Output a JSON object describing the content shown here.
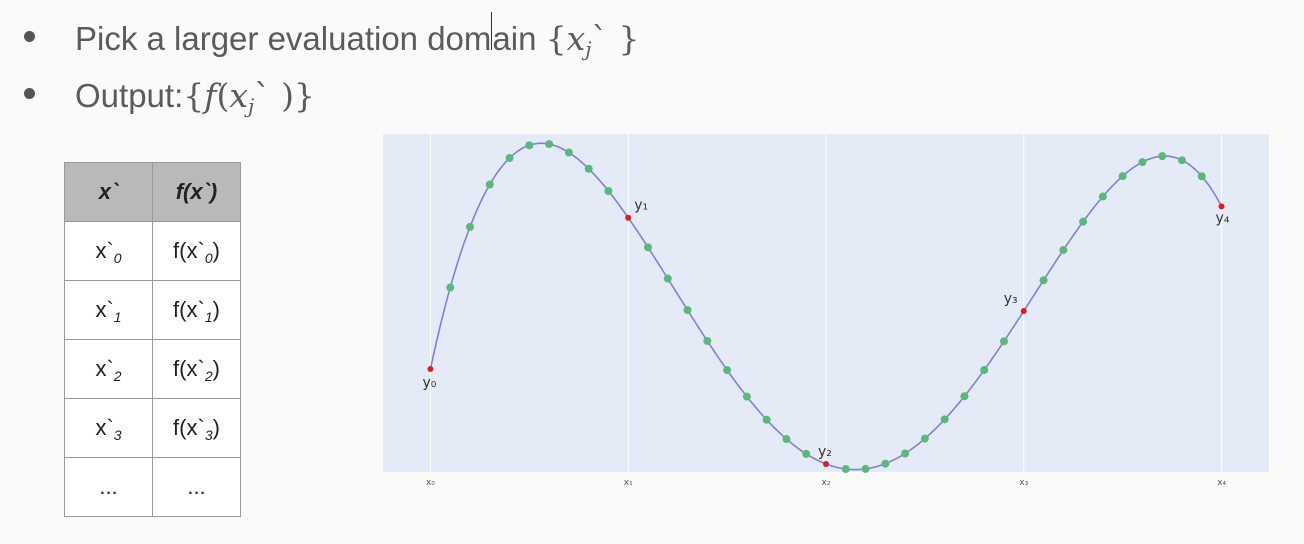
{
  "bullets": [
    {
      "text": "Pick a larger evaluation dom",
      "text_after": "ain",
      "math_open": "{",
      "math_var": "x",
      "math_sub": "j",
      "math_prime": "`",
      "math_close": "}"
    },
    {
      "text": "Output: ",
      "math_open": "{",
      "math_func": "f",
      "math_paren_open": "(",
      "math_var": "x",
      "math_sub": "j",
      "math_prime": "`",
      "math_paren_close": ")",
      "math_close": "}"
    }
  ],
  "table": {
    "headers": [
      "x`",
      "f(x`)"
    ],
    "rows": [
      {
        "x": "x`",
        "x_sub": "0",
        "fx": "f(x`",
        "fx_sub": "0",
        "fx_close": ")"
      },
      {
        "x": "x`",
        "x_sub": "1",
        "fx": "f(x`",
        "fx_sub": "1",
        "fx_close": ")"
      },
      {
        "x": "x`",
        "x_sub": "2",
        "fx": "f(x`",
        "fx_sub": "2",
        "fx_close": ")"
      },
      {
        "x": "x`",
        "x_sub": "3",
        "fx": "f(x`",
        "fx_sub": "3",
        "fx_close": ")"
      },
      {
        "x": "...",
        "x_sub": "",
        "fx": "...",
        "fx_sub": "",
        "fx_close": ""
      }
    ]
  },
  "chart_data": {
    "type": "line",
    "x_tick_labels": [
      "x₀",
      "x₁",
      "x₂",
      "x₃",
      "x₄"
    ],
    "point_labels": [
      "y₀",
      "y₁",
      "y₂",
      "y₃",
      "y₄"
    ],
    "x": [
      0,
      1,
      2,
      3,
      4
    ],
    "y": [
      -0.41,
      0.53,
      -1.0,
      -0.05,
      0.6
    ],
    "xlim": [
      -0.24,
      4.24
    ],
    "ylim": [
      -1.05,
      1.05
    ],
    "grid": true,
    "colors": {
      "background": "#e5ebf6",
      "grid": "#ffffff",
      "line": "#7b82d6",
      "node": "#e41a1c",
      "eval_point": "#5cb87a"
    }
  }
}
